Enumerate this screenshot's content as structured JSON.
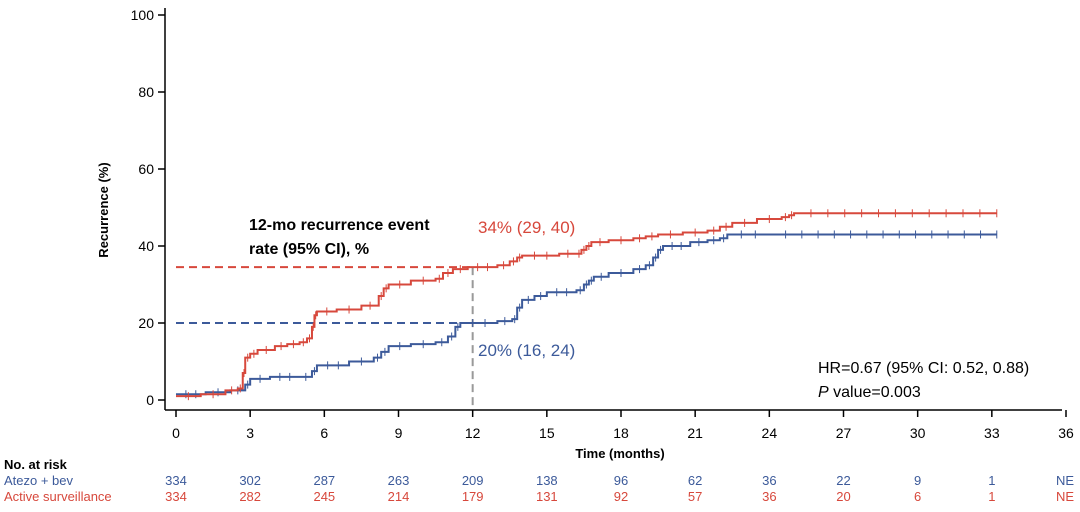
{
  "chart_data": {
    "type": "line",
    "subtype": "kaplan-meier-cumulative-incidence",
    "xlabel": "Time (months)",
    "ylabel": "Recurrence (%)",
    "xlim": [
      0,
      36
    ],
    "ylim": [
      0,
      100
    ],
    "xticks": [
      0,
      3,
      6,
      9,
      12,
      15,
      18,
      21,
      24,
      27,
      30,
      33,
      36
    ],
    "yticks": [
      0,
      20,
      40,
      60,
      80,
      100
    ],
    "series": [
      {
        "name": "Atezo + bev",
        "color": "#3c5a9a",
        "points": [
          [
            0,
            1.5
          ],
          [
            1.2,
            2
          ],
          [
            2.2,
            2.5
          ],
          [
            2.8,
            4
          ],
          [
            3,
            5.5
          ],
          [
            3.8,
            6
          ],
          [
            5,
            6
          ],
          [
            5.5,
            7.5
          ],
          [
            5.7,
            9
          ],
          [
            7,
            10
          ],
          [
            8,
            11
          ],
          [
            8.3,
            12.5
          ],
          [
            8.6,
            14
          ],
          [
            9.5,
            14.5
          ],
          [
            10.5,
            15
          ],
          [
            11,
            16.5
          ],
          [
            11.3,
            19
          ],
          [
            11.5,
            20
          ],
          [
            13,
            20.5
          ],
          [
            13.6,
            21
          ],
          [
            13.8,
            24
          ],
          [
            14,
            26
          ],
          [
            14.5,
            27
          ],
          [
            15,
            28
          ],
          [
            16.2,
            28.5
          ],
          [
            16.5,
            30
          ],
          [
            16.7,
            31
          ],
          [
            16.9,
            32
          ],
          [
            17.5,
            33
          ],
          [
            18.5,
            34
          ],
          [
            19,
            35
          ],
          [
            19.3,
            37
          ],
          [
            19.5,
            39
          ],
          [
            19.7,
            40
          ],
          [
            20.8,
            41
          ],
          [
            21.5,
            41.5
          ],
          [
            22,
            42
          ],
          [
            22.3,
            43
          ],
          [
            24,
            43
          ],
          [
            33.2,
            43
          ]
        ],
        "end_label": "20% (16, 24)",
        "rate_12mo": 20
      },
      {
        "name": "Active surveillance",
        "color": "#d7483c",
        "points": [
          [
            0,
            1
          ],
          [
            1,
            1.5
          ],
          [
            2,
            2.5
          ],
          [
            2.5,
            3
          ],
          [
            2.7,
            7
          ],
          [
            2.8,
            11
          ],
          [
            3,
            12
          ],
          [
            3.3,
            13
          ],
          [
            4,
            14
          ],
          [
            4.5,
            14.5
          ],
          [
            5,
            15
          ],
          [
            5.3,
            16
          ],
          [
            5.5,
            19
          ],
          [
            5.6,
            22
          ],
          [
            5.7,
            23
          ],
          [
            6.5,
            23.5
          ],
          [
            7.5,
            24.5
          ],
          [
            8.2,
            27
          ],
          [
            8.4,
            29
          ],
          [
            8.6,
            30
          ],
          [
            9.5,
            31
          ],
          [
            10.5,
            31.5
          ],
          [
            10.8,
            33
          ],
          [
            11.2,
            34
          ],
          [
            11.8,
            34.5
          ],
          [
            13,
            35
          ],
          [
            13.5,
            36
          ],
          [
            13.8,
            37
          ],
          [
            14,
            37.5
          ],
          [
            15.5,
            38
          ],
          [
            16.2,
            38
          ],
          [
            16.4,
            39
          ],
          [
            16.6,
            40
          ],
          [
            16.8,
            41
          ],
          [
            17.5,
            41.5
          ],
          [
            18.5,
            42
          ],
          [
            19,
            42.5
          ],
          [
            19.5,
            43
          ],
          [
            20.5,
            43.5
          ],
          [
            21.5,
            44
          ],
          [
            22,
            45
          ],
          [
            22.5,
            46
          ],
          [
            23.5,
            47
          ],
          [
            24.5,
            47.5
          ],
          [
            24.8,
            48
          ],
          [
            25,
            48.5
          ],
          [
            33.2,
            48.5
          ]
        ],
        "end_label": "34% (29, 40)",
        "rate_12mo": 34.5
      }
    ],
    "annotations": {
      "rate_title_line1": "12-mo recurrence event",
      "rate_title_line2": "rate (95% CI), %",
      "hr_text": "HR=0.67 (95% CI: 0.52, 0.88)",
      "p_italic": "P",
      "p_rest": " value=0.003"
    },
    "risk_table": {
      "title": "No. at risk",
      "rows": [
        {
          "label": "Atezo + bev",
          "color": "#3c5a9a",
          "values": [
            "334",
            "302",
            "287",
            "263",
            "209",
            "138",
            "96",
            "62",
            "36",
            "22",
            "9",
            "1",
            "NE"
          ]
        },
        {
          "label": "Active surveillance",
          "color": "#d7483c",
          "values": [
            "334",
            "282",
            "245",
            "214",
            "179",
            "131",
            "92",
            "57",
            "36",
            "20",
            "6",
            "1",
            "NE"
          ]
        }
      ]
    }
  }
}
